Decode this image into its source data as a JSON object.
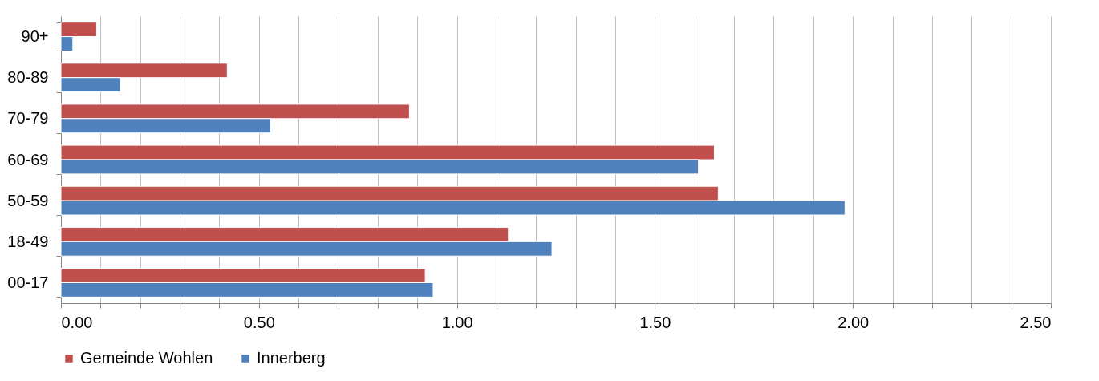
{
  "chart_data": {
    "type": "bar",
    "orientation": "horizontal",
    "categories": [
      "90+",
      "80-89",
      "70-79",
      "60-69",
      "50-59",
      "18-49",
      "00-17"
    ],
    "series": [
      {
        "name": "Gemeinde Wohlen",
        "color": "#c0504d",
        "values": [
          0.09,
          0.42,
          0.88,
          1.65,
          1.66,
          1.13,
          0.92
        ]
      },
      {
        "name": "Innerberg",
        "color": "#4f81bd",
        "values": [
          0.03,
          0.15,
          0.53,
          1.61,
          1.98,
          1.24,
          0.94
        ]
      }
    ],
    "xlim": [
      0,
      2.5
    ],
    "xticks": [
      "0.00",
      {
        "value": 0.1,
        "label": null
      },
      {
        "value": 0.2,
        "label": null
      },
      {
        "value": 0.3,
        "label": null
      },
      {
        "value": 0.4,
        "label": null
      },
      {
        "value": 0.5,
        "label": "0.50"
      },
      {
        "value": 0.6,
        "label": null
      },
      {
        "value": 0.7,
        "label": null
      },
      {
        "value": 0.8,
        "label": null
      },
      {
        "value": 0.9,
        "label": null
      },
      {
        "value": 1,
        "label": "1.00"
      },
      {
        "value": 1.1,
        "label": null
      },
      {
        "value": 1.2,
        "label": null
      },
      {
        "value": 1.3,
        "label": null
      },
      {
        "value": 1.4,
        "label": null
      },
      {
        "value": 1.5,
        "label": "1.50"
      },
      {
        "value": 1.6,
        "label": null
      },
      {
        "value": 1.7,
        "label": null
      },
      {
        "value": 1.8,
        "label": null
      },
      {
        "value": 1.9,
        "label": null
      },
      {
        "value": 2,
        "label": "2.00"
      },
      {
        "value": 2.1,
        "label": null
      },
      {
        "value": 2.2,
        "label": null
      },
      {
        "value": 2.3,
        "label": null
      },
      {
        "value": 2.4,
        "label": null
      },
      {
        "value": 2.5,
        "label": "2.50"
      }
    ],
    "grid": "x",
    "legend": "bottom"
  }
}
